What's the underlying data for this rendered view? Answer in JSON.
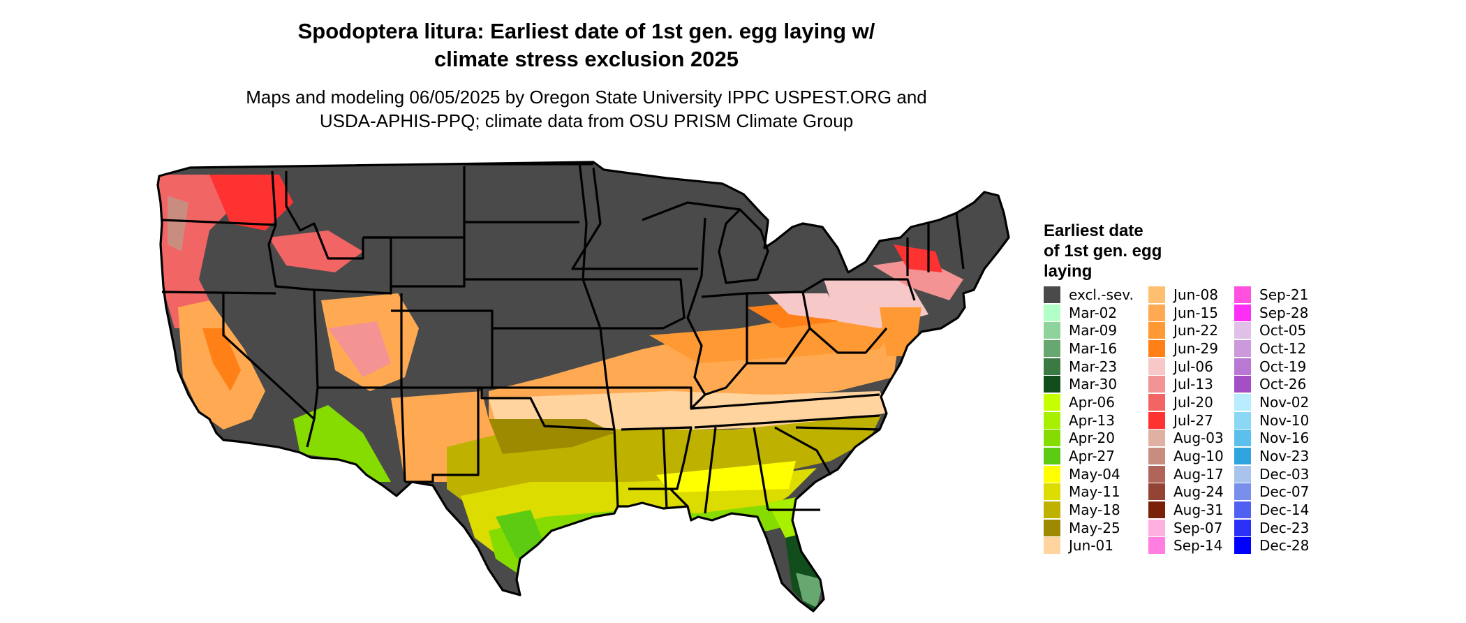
{
  "title_line1": "Spodoptera litura: Earliest date of 1st gen. egg laying w/",
  "title_line2": "climate stress exclusion 2025",
  "subtitle_line1": "Maps and modeling 06/05/2025 by Oregon State University IPPC USPEST.ORG and",
  "subtitle_line2": "USDA-APHIS-PPQ; climate data from OSU PRISM Climate Group",
  "legend": {
    "title_lines": [
      "Earliest date",
      "of 1st gen. egg",
      "laying"
    ],
    "columns": [
      [
        {
          "label": "excl.-sev.",
          "color": "#4a4a4a"
        },
        {
          "label": "Mar-02",
          "color": "#b2ffc8"
        },
        {
          "label": "Mar-09",
          "color": "#8fd39c"
        },
        {
          "label": "Mar-16",
          "color": "#66a870"
        },
        {
          "label": "Mar-23",
          "color": "#3c7a44"
        },
        {
          "label": "Mar-30",
          "color": "#124d1c"
        },
        {
          "label": "Apr-06",
          "color": "#c6ff00"
        },
        {
          "label": "Apr-13",
          "color": "#a8ef00"
        },
        {
          "label": "Apr-20",
          "color": "#86dc00"
        },
        {
          "label": "Apr-27",
          "color": "#5ccb12"
        },
        {
          "label": "May-04",
          "color": "#ffff00"
        },
        {
          "label": "May-11",
          "color": "#dcdc00"
        },
        {
          "label": "May-18",
          "color": "#bfb100"
        },
        {
          "label": "May-25",
          "color": "#9e8a00"
        },
        {
          "label": "Jun-01",
          "color": "#ffd49e"
        }
      ],
      [
        {
          "label": "Jun-08",
          "color": "#ffbf70"
        },
        {
          "label": "Jun-15",
          "color": "#ffaa52"
        },
        {
          "label": "Jun-22",
          "color": "#ff9933"
        },
        {
          "label": "Jun-29",
          "color": "#ff8016"
        },
        {
          "label": "Jul-06",
          "color": "#f6c8c8"
        },
        {
          "label": "Jul-13",
          "color": "#f39393"
        },
        {
          "label": "Jul-20",
          "color": "#f26565"
        },
        {
          "label": "Jul-27",
          "color": "#ff3232"
        },
        {
          "label": "Aug-03",
          "color": "#e0b0a3"
        },
        {
          "label": "Aug-10",
          "color": "#c98d80"
        },
        {
          "label": "Aug-17",
          "color": "#b0645a"
        },
        {
          "label": "Aug-24",
          "color": "#944434"
        },
        {
          "label": "Aug-31",
          "color": "#7a2008"
        },
        {
          "label": "Sep-07",
          "color": "#ffb0e0"
        },
        {
          "label": "Sep-14",
          "color": "#ff7ee0"
        }
      ],
      [
        {
          "label": "Sep-21",
          "color": "#ff50e0"
        },
        {
          "label": "Sep-28",
          "color": "#ff2ef5"
        },
        {
          "label": "Oct-05",
          "color": "#e0c0e8"
        },
        {
          "label": "Oct-12",
          "color": "#cc99dd"
        },
        {
          "label": "Oct-19",
          "color": "#b878d4"
        },
        {
          "label": "Oct-26",
          "color": "#a44fc4"
        },
        {
          "label": "Nov-02",
          "color": "#b8ecff"
        },
        {
          "label": "Nov-10",
          "color": "#8ad8f4"
        },
        {
          "label": "Nov-16",
          "color": "#5cc0ec"
        },
        {
          "label": "Nov-23",
          "color": "#30a4de"
        },
        {
          "label": "Dec-03",
          "color": "#a8c4ec"
        },
        {
          "label": "Dec-07",
          "color": "#7890ec"
        },
        {
          "label": "Dec-14",
          "color": "#5060f0"
        },
        {
          "label": "Dec-23",
          "color": "#2a30f8"
        },
        {
          "label": "Dec-28",
          "color": "#0000ff"
        }
      ]
    ]
  }
}
